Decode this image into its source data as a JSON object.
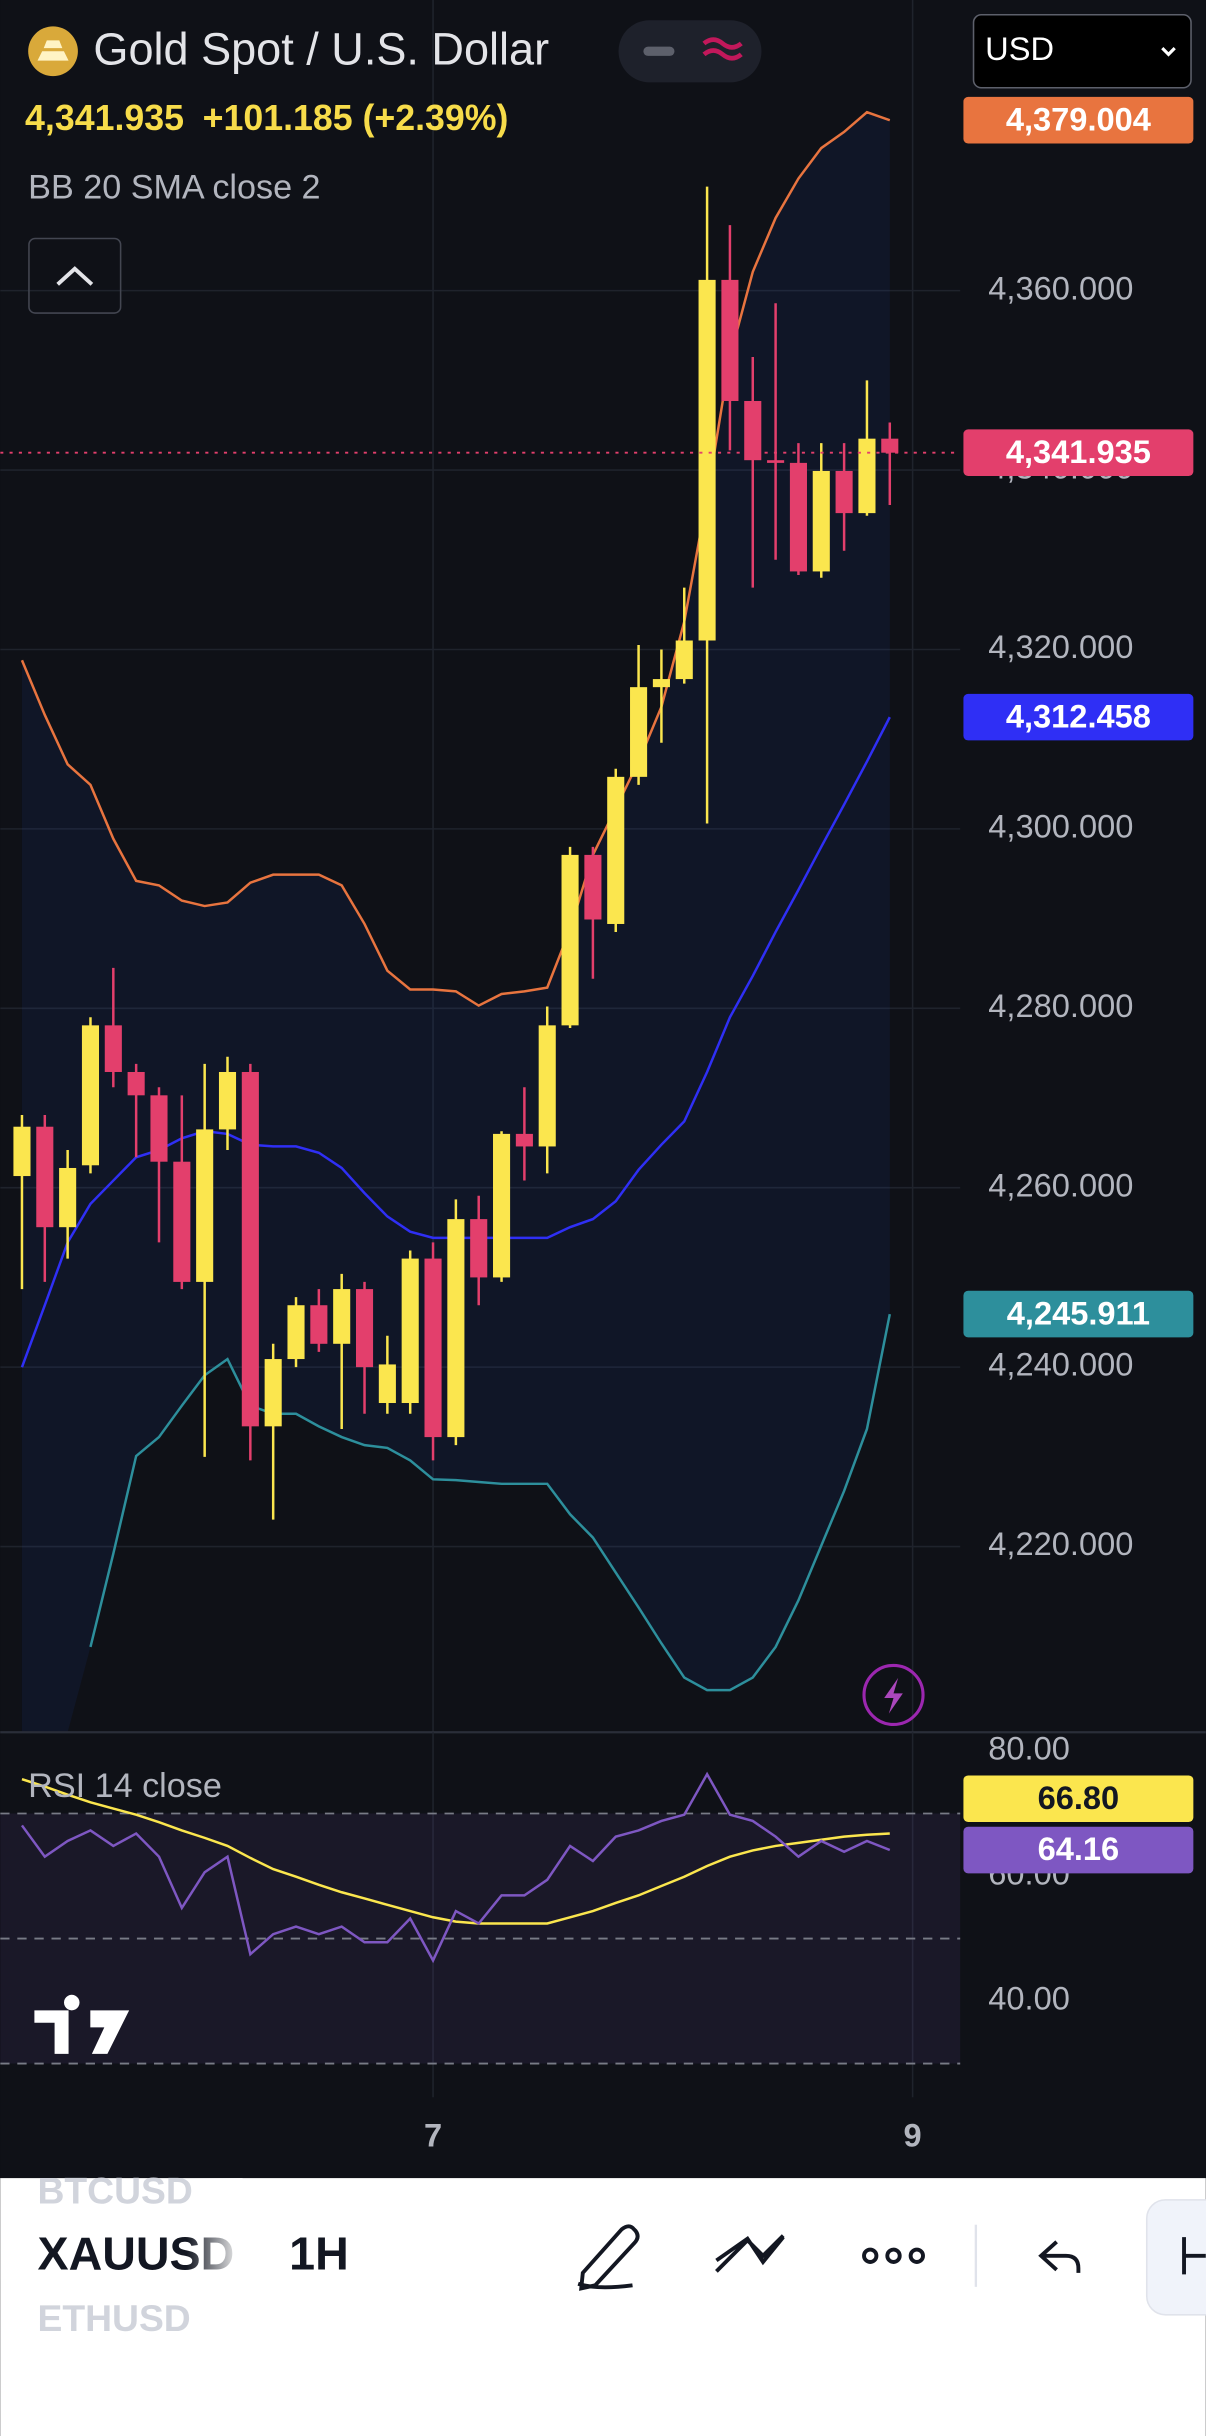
{
  "chart_data": {
    "type": "candlestick",
    "title": "Gold Spot / U.S. Dollar",
    "price_label": "4,341.935",
    "change_label": "+101.185 (+2.39%)",
    "indicator_label": "BB 20 SMA close 2",
    "currency": "USD",
    "up_color": "#fbe64e",
    "down_color": "#e33f6c",
    "open": [
      4261.3,
      4266.8,
      4255.6,
      4262.5,
      4278.1,
      4272.9,
      4270.3,
      4262.9,
      4249.5,
      4266.5,
      4272.9,
      4233.4,
      4240.9,
      4246.9,
      4242.6,
      4248.7,
      4236.0,
      4236.0,
      4252.1,
      4232.2,
      4256.5,
      4250.0,
      4266.0,
      4264.6,
      4278.1,
      4297.1,
      4289.4,
      4305.8,
      4315.8,
      4316.7,
      4321.0,
      4361.2,
      4347.7,
      4341.1,
      4340.8,
      4328.7,
      4339.9,
      4335.2,
      4343.5
    ],
    "high": [
      4268.1,
      4268.1,
      4264.2,
      4279.0,
      4284.5,
      4273.8,
      4271.2,
      4270.3,
      4273.8,
      4274.6,
      4273.8,
      4242.6,
      4247.8,
      4248.7,
      4250.4,
      4249.5,
      4243.5,
      4253.0,
      4253.9,
      4258.7,
      4259.1,
      4266.3,
      4271.2,
      4280.2,
      4298.0,
      4298.0,
      4306.7,
      4320.5,
      4320.0,
      4326.9,
      4371.6,
      4367.3,
      4352.6,
      4358.6,
      4343.0,
      4343.0,
      4343.0,
      4350.0,
      4345.3
    ],
    "low": [
      4248.7,
      4249.5,
      4252.1,
      4261.6,
      4271.2,
      4263.4,
      4253.9,
      4248.7,
      4230.0,
      4264.2,
      4229.6,
      4223.0,
      4240.0,
      4241.7,
      4233.1,
      4234.8,
      4234.8,
      4234.8,
      4229.6,
      4231.3,
      4246.9,
      4249.5,
      4260.8,
      4261.6,
      4277.8,
      4283.3,
      4288.5,
      4304.9,
      4309.6,
      4316.2,
      4300.6,
      4342.2,
      4326.9,
      4330.0,
      4328.3,
      4328.0,
      4331.0,
      4334.9,
      4336.1
    ],
    "close": [
      4266.8,
      4255.6,
      4262.2,
      4278.1,
      4272.9,
      4270.3,
      4262.9,
      4249.5,
      4266.5,
      4272.9,
      4233.4,
      4240.9,
      4246.9,
      4242.6,
      4248.7,
      4240.0,
      4240.3,
      4252.1,
      4232.2,
      4256.5,
      4250.0,
      4266.0,
      4264.6,
      4278.1,
      4297.1,
      4289.9,
      4305.8,
      4315.8,
      4316.7,
      4321.0,
      4361.2,
      4347.7,
      4341.1,
      4340.8,
      4328.7,
      4339.9,
      4335.2,
      4343.5,
      4341.935
    ],
    "bands": [
      {
        "color": "#e8743f",
        "value_label": "4,379.004",
        "values": [
          4318.8,
          4312.7,
          4307.2,
          4304.9,
          4298.9,
          4294.2,
          4293.7,
          4292.0,
          4291.4,
          4291.8,
          4294.0,
          4294.9,
          4294.9,
          4294.9,
          4293.7,
          4289.4,
          4284.2,
          4282.1,
          4282.1,
          4281.9,
          4280.3,
          4281.6,
          4281.9,
          4282.3,
          4288.8,
          4297.1,
          4302.3,
          4307.5,
          4313.6,
          4323.1,
          4337.0,
          4352.6,
          4362.1,
          4368.1,
          4372.5,
          4375.9,
          4377.7,
          4379.9,
          4379.004
        ]
      },
      {
        "color": "#2f2ff5",
        "value_label": "4,312.458",
        "values": [
          4240.0,
          4246.9,
          4253.9,
          4258.2,
          4260.8,
          4263.4,
          4264.2,
          4265.5,
          4266.3,
          4266.0,
          4264.8,
          4264.6,
          4264.6,
          4263.9,
          4262.2,
          4259.4,
          4256.8,
          4255.1,
          4254.4,
          4254.4,
          4254.4,
          4254.4,
          4254.4,
          4254.4,
          4255.6,
          4256.5,
          4258.5,
          4262.0,
          4264.8,
          4267.4,
          4272.9,
          4279.0,
          4283.6,
          4288.5,
          4293.2,
          4298.0,
          4302.7,
          4307.5,
          4312.458
        ]
      },
      {
        "color": "#2d8f9c",
        "value_label": "4,245.911",
        "values": [
          null,
          null,
          null,
          4208.8,
          4219.2,
          4230.1,
          4232.2,
          4235.7,
          4239.1,
          4240.9,
          4235.7,
          4234.8,
          4234.8,
          4233.4,
          4232.2,
          4231.3,
          4231.0,
          4229.6,
          4227.5,
          4227.4,
          4227.2,
          4227.0,
          4227.0,
          4227.0,
          4223.6,
          4221.0,
          4217.1,
          4213.2,
          4209.2,
          4205.4,
          4204.0,
          4204.0,
          4205.4,
          4208.8,
          4214.0,
          4220.1,
          4226.2,
          4233.1,
          4245.911
        ]
      }
    ],
    "ylim": [
      4199.3,
      4392.4
    ],
    "yticks": [
      {
        "value": 4220,
        "label": "4,220.000"
      },
      {
        "value": 4240,
        "label": "4,240.000"
      },
      {
        "value": 4260,
        "label": "4,260.000"
      },
      {
        "value": 4280,
        "label": "4,280.000"
      },
      {
        "value": 4300,
        "label": "4,300.000"
      },
      {
        "value": 4320,
        "label": "4,320.000"
      },
      {
        "value": 4340,
        "label": "4,340.000"
      },
      {
        "value": 4360,
        "label": "4,360.000"
      }
    ],
    "xticks": [
      {
        "value": 18,
        "label": "7"
      },
      {
        "value": 39,
        "label": "9"
      }
    ],
    "grid": true,
    "rsi": {
      "title": "RSI 14 close",
      "ylim": [
        24.6,
        83.0
      ],
      "yticks": [
        {
          "value": 80,
          "label": "80.00"
        },
        {
          "value": 60,
          "label": "60.00"
        },
        {
          "value": 40,
          "label": "40.00"
        }
      ],
      "levels": [
        70,
        50,
        30
      ],
      "series": [
        {
          "color": "#fbe64e",
          "value_label": "66.80",
          "values": [
            75.5,
            74.3,
            73.0,
            71.8,
            70.8,
            69.8,
            68.6,
            67.3,
            66.1,
            64.8,
            62.9,
            61.1,
            59.9,
            58.6,
            57.4,
            56.4,
            55.4,
            54.4,
            53.4,
            52.7,
            52.4,
            52.4,
            52.4,
            52.4,
            53.4,
            54.4,
            55.7,
            56.9,
            58.4,
            59.9,
            61.6,
            63.1,
            64.1,
            64.8,
            65.3,
            65.8,
            66.3,
            66.6,
            66.8
          ]
        },
        {
          "color": "#7e57c2",
          "value_label": "64.16",
          "values": [
            68.1,
            63.1,
            65.6,
            67.3,
            64.8,
            66.8,
            63.1,
            54.9,
            60.6,
            63.1,
            47.5,
            50.7,
            51.9,
            50.7,
            51.9,
            49.4,
            49.4,
            53.2,
            46.5,
            54.4,
            52.4,
            56.9,
            56.9,
            59.4,
            64.8,
            62.4,
            66.3,
            67.3,
            68.8,
            69.8,
            76.3,
            69.8,
            68.8,
            66.3,
            63.1,
            65.6,
            63.9,
            65.6,
            64.16
          ]
        }
      ]
    }
  },
  "toolbar": {
    "symbols": [
      "BTCUSD",
      "XAUUSD",
      "ETHUSD"
    ],
    "interval": "1H"
  }
}
